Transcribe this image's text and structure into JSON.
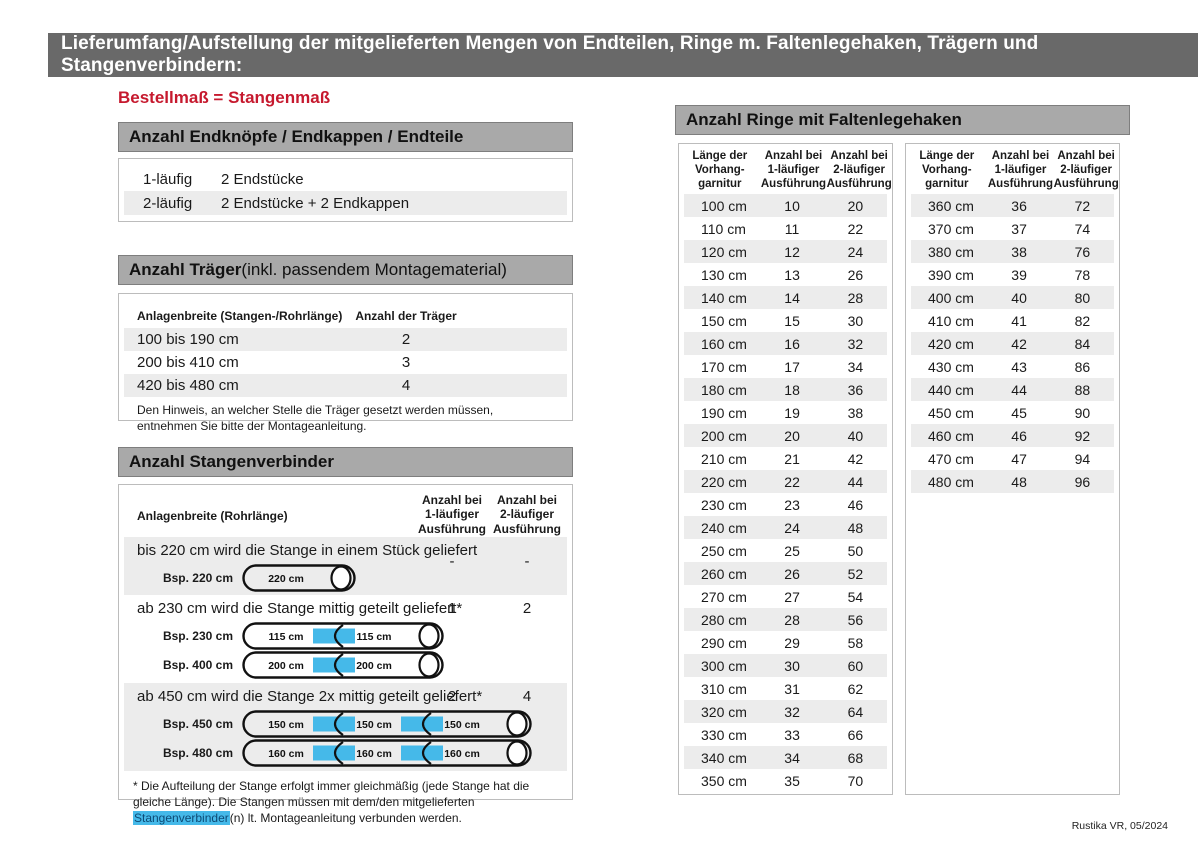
{
  "page": {
    "header_title": "Lieferumfang/Aufstellung der mitgelieferten Mengen von Endteilen, Ringe m. Faltenlegehaken, Trägern und Stangenverbindern:",
    "footer": "Rustika VR, 05/2024",
    "colors": {
      "accent_blue": "#45b9e9",
      "title_red": "#c6192e",
      "section_bar_gray": "#a9a9a9",
      "topbar_gray": "#696969",
      "row_stripe": "#ececec"
    }
  },
  "left": {
    "subtitle": "Bestellmaß = Stangenmaß",
    "endteile": {
      "title": "Anzahl Endknöpfe / Endkappen / Endteile",
      "rows": [
        {
          "label": "1-läufig",
          "value": "2 Endstücke"
        },
        {
          "label": "2-läufig",
          "value": "2 Endstücke + 2 Endkappen"
        }
      ]
    },
    "traeger": {
      "title_bold": "Anzahl Träger",
      "title_rest": " (inkl. passendem Montagematerial)",
      "col1": "Anlagenbreite (Stangen-/Rohrlänge)",
      "col2": "Anzahl der Träger",
      "rows": [
        {
          "range": "100 bis 190 cm",
          "count": "2"
        },
        {
          "range": "200 bis 410 cm",
          "count": "3"
        },
        {
          "range": "420 bis 480 cm",
          "count": "4"
        }
      ],
      "note": "Den Hinweis, an welcher Stelle die Träger gesetzt werden müssen, entnehmen Sie bitte der Montageanleitung."
    },
    "verbinder": {
      "title": "Anzahl Stangenverbinder",
      "col1": "Anlagenbreite (Rohrlänge)",
      "col2": "Anzahl bei\n1-läufiger\nAusführung",
      "col3": "Anzahl bei\n2-läufiger\nAusführung",
      "blocks": [
        {
          "text": "bis 220 cm wird die Stange in einem Stück geliefert",
          "n1": "-",
          "n2": "-",
          "rods": [
            {
              "label": "Bsp. 220 cm",
              "segments": [
                "220 cm"
              ]
            }
          ]
        },
        {
          "text": "ab 230 cm wird die Stange mittig geteilt geliefert*",
          "n1": "1",
          "n2": "2",
          "rods": [
            {
              "label": "Bsp. 230 cm",
              "segments": [
                "115 cm",
                "115 cm"
              ]
            },
            {
              "label": "Bsp. 400 cm",
              "segments": [
                "200 cm",
                "200 cm"
              ]
            }
          ]
        },
        {
          "text": "ab 450 cm wird die Stange 2x mittig geteilt geliefert*",
          "n1": "2",
          "n2": "4",
          "rods": [
            {
              "label": "Bsp. 450 cm",
              "segments": [
                "150 cm",
                "150 cm",
                "150 cm"
              ]
            },
            {
              "label": "Bsp. 480 cm",
              "segments": [
                "160 cm",
                "160 cm",
                "160 cm"
              ]
            }
          ]
        }
      ],
      "footnote": {
        "pre": "* Die Aufteilung der Stange erfolgt immer gleichmäßig (jede Stange hat die gleiche Länge). Die Stangen müssen mit dem/den mitgelieferten ",
        "highlight": "Stangenverbinder",
        "post": "(n) lt. Montageanleitung verbunden werden."
      }
    }
  },
  "right": {
    "title": "Anzahl Ringe mit Faltenlegehaken",
    "col1": "Länge der\nVorhang-\ngarnitur",
    "col2": "Anzahl bei\n1-läufiger\nAusführung",
    "col3": "Anzahl bei\n2-läufiger\nAusführung",
    "tables": [
      {
        "rows": [
          [
            "100 cm",
            "10",
            "20"
          ],
          [
            "110 cm",
            "11",
            "22"
          ],
          [
            "120 cm",
            "12",
            "24"
          ],
          [
            "130 cm",
            "13",
            "26"
          ],
          [
            "140 cm",
            "14",
            "28"
          ],
          [
            "150 cm",
            "15",
            "30"
          ],
          [
            "160 cm",
            "16",
            "32"
          ],
          [
            "170 cm",
            "17",
            "34"
          ],
          [
            "180 cm",
            "18",
            "36"
          ],
          [
            "190 cm",
            "19",
            "38"
          ],
          [
            "200 cm",
            "20",
            "40"
          ],
          [
            "210 cm",
            "21",
            "42"
          ],
          [
            "220 cm",
            "22",
            "44"
          ],
          [
            "230 cm",
            "23",
            "46"
          ],
          [
            "240 cm",
            "24",
            "48"
          ],
          [
            "250 cm",
            "25",
            "50"
          ],
          [
            "260 cm",
            "26",
            "52"
          ],
          [
            "270 cm",
            "27",
            "54"
          ],
          [
            "280 cm",
            "28",
            "56"
          ],
          [
            "290 cm",
            "29",
            "58"
          ],
          [
            "300 cm",
            "30",
            "60"
          ],
          [
            "310 cm",
            "31",
            "62"
          ],
          [
            "320 cm",
            "32",
            "64"
          ],
          [
            "330 cm",
            "33",
            "66"
          ],
          [
            "340 cm",
            "34",
            "68"
          ],
          [
            "350 cm",
            "35",
            "70"
          ]
        ]
      },
      {
        "rows": [
          [
            "360 cm",
            "36",
            "72"
          ],
          [
            "370 cm",
            "37",
            "74"
          ],
          [
            "380 cm",
            "38",
            "76"
          ],
          [
            "390 cm",
            "39",
            "78"
          ],
          [
            "400 cm",
            "40",
            "80"
          ],
          [
            "410 cm",
            "41",
            "82"
          ],
          [
            "420 cm",
            "42",
            "84"
          ],
          [
            "430 cm",
            "43",
            "86"
          ],
          [
            "440 cm",
            "44",
            "88"
          ],
          [
            "450 cm",
            "45",
            "90"
          ],
          [
            "460 cm",
            "46",
            "92"
          ],
          [
            "470 cm",
            "47",
            "94"
          ],
          [
            "480 cm",
            "48",
            "96"
          ]
        ]
      }
    ]
  }
}
